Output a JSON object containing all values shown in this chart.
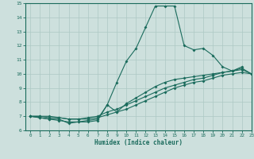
{
  "xlabel": "Humidex (Indice chaleur)",
  "xlim": [
    -0.5,
    23
  ],
  "ylim": [
    6,
    15
  ],
  "xticks": [
    0,
    1,
    2,
    3,
    4,
    5,
    6,
    7,
    8,
    9,
    10,
    11,
    12,
    13,
    14,
    15,
    16,
    17,
    18,
    19,
    20,
    21,
    22,
    23
  ],
  "yticks": [
    6,
    7,
    8,
    9,
    10,
    11,
    12,
    13,
    14,
    15
  ],
  "bg_color": "#cde0dd",
  "line_color": "#1a6b5c",
  "grid_color": "#adc8c4",
  "series": [
    {
      "x": [
        0,
        1,
        2,
        3,
        4,
        5,
        6,
        7,
        8,
        9,
        10,
        11,
        12,
        13,
        14,
        15,
        16,
        17,
        18,
        19,
        20,
        21,
        22
      ],
      "y": [
        7.0,
        6.9,
        6.8,
        6.8,
        6.5,
        6.6,
        6.6,
        6.7,
        7.8,
        9.4,
        10.9,
        11.8,
        13.3,
        14.8,
        14.8,
        14.8,
        12.0,
        11.7,
        11.8,
        11.3,
        10.5,
        10.2,
        10.5
      ]
    },
    {
      "x": [
        0,
        1,
        2,
        3,
        4,
        5,
        6,
        7,
        8,
        9,
        10,
        11,
        12,
        13,
        14,
        15,
        16,
        17,
        18,
        19,
        20,
        21,
        22,
        23
      ],
      "y": [
        7.0,
        6.9,
        6.8,
        6.7,
        6.6,
        6.6,
        6.7,
        6.8,
        7.8,
        7.3,
        7.9,
        8.3,
        8.7,
        9.1,
        9.4,
        9.6,
        9.7,
        9.8,
        9.9,
        10.0,
        10.1,
        10.2,
        10.4,
        10.0
      ]
    },
    {
      "x": [
        0,
        1,
        2,
        3,
        4,
        5,
        6,
        7,
        8,
        9,
        10,
        11,
        12,
        13,
        14,
        15,
        16,
        17,
        18,
        19,
        20,
        21,
        22,
        23
      ],
      "y": [
        7.0,
        7.0,
        6.9,
        6.9,
        6.8,
        6.8,
        6.9,
        7.0,
        7.3,
        7.5,
        7.8,
        8.1,
        8.4,
        8.7,
        9.0,
        9.2,
        9.4,
        9.6,
        9.7,
        9.9,
        10.1,
        10.2,
        10.3,
        10.0
      ]
    },
    {
      "x": [
        0,
        1,
        2,
        3,
        4,
        5,
        6,
        7,
        8,
        9,
        10,
        11,
        12,
        13,
        14,
        15,
        16,
        17,
        18,
        19,
        20,
        21,
        22,
        23
      ],
      "y": [
        7.0,
        7.0,
        7.0,
        6.9,
        6.8,
        6.8,
        6.8,
        6.9,
        7.1,
        7.3,
        7.5,
        7.8,
        8.1,
        8.4,
        8.7,
        9.0,
        9.2,
        9.4,
        9.5,
        9.7,
        9.9,
        10.0,
        10.1,
        10.0
      ]
    }
  ]
}
